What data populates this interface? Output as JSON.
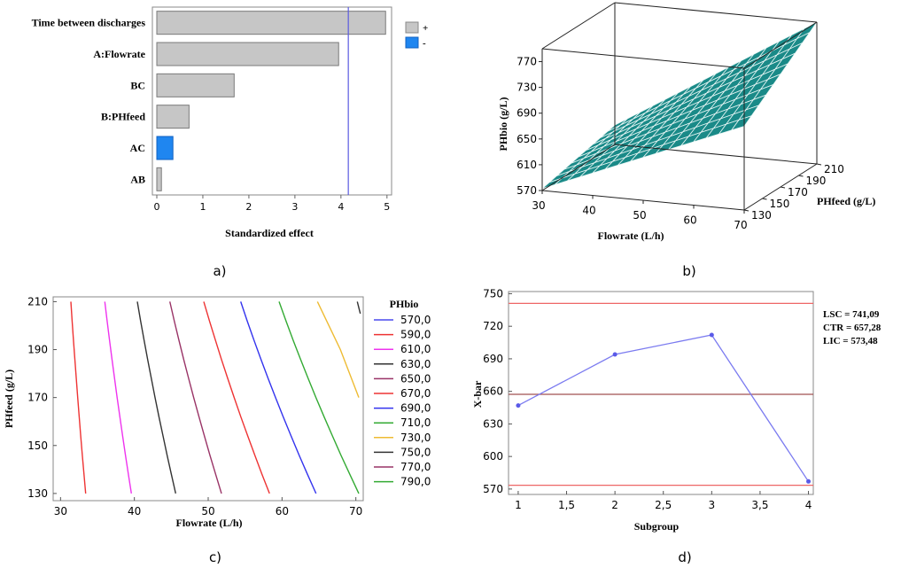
{
  "panel_labels": [
    "a)",
    "b)",
    "c)",
    "d)"
  ],
  "chart_data": [
    {
      "id": "a",
      "type": "bar",
      "orientation": "horizontal",
      "categories": [
        "Time between discharges",
        "A:Flowrate",
        "BC",
        "B:PHfeed",
        "AC",
        "AB"
      ],
      "values": [
        4.97,
        3.95,
        1.68,
        0.7,
        0.35,
        0.1
      ],
      "signs": [
        "+",
        "+",
        "+",
        "+",
        "-",
        "+"
      ],
      "xlabel": "Standardized effect",
      "xlim": [
        0,
        5.1
      ],
      "xticks": [
        0,
        1,
        2,
        3,
        4,
        5
      ],
      "reference_line": 4.16,
      "legend": {
        "entries": [
          "+",
          "-"
        ],
        "placement": "right"
      },
      "colors": {
        "positive": "#c6c6c6",
        "negative": "#1f86f0",
        "reference": "#5a5ae0"
      }
    },
    {
      "id": "b",
      "type": "surface",
      "xlabel": "Flowrate (L/h)",
      "ylabel": "PHfeed (g/L)",
      "zlabel": "PHbio (g/L)",
      "x_ticks": [
        30,
        40,
        50,
        60,
        70
      ],
      "y_ticks": [
        130,
        150,
        170,
        190,
        210
      ],
      "z_ticks": [
        570,
        610,
        650,
        690,
        730,
        770
      ],
      "xlim": [
        30,
        70
      ],
      "ylim": [
        130,
        210
      ],
      "zlim": [
        570,
        790
      ],
      "corner_values": {
        "x30_y130": 573,
        "x70_y130": 700,
        "x30_y210": 600,
        "x70_y210": 790
      },
      "color": "#1a8a88"
    },
    {
      "id": "c",
      "type": "contour",
      "xlabel": "Flowrate (L/h)",
      "ylabel": "PHfeed (g/L)",
      "xlim": [
        29,
        71
      ],
      "ylim": [
        127,
        212
      ],
      "xticks": [
        30,
        40,
        50,
        60,
        70
      ],
      "yticks": [
        130,
        150,
        170,
        190,
        210
      ],
      "legend_title": "PHbio",
      "levels": [
        {
          "label": "570,0",
          "color": "#4a4aee",
          "x_at_210": null,
          "x_at_130": null
        },
        {
          "label": "590,0",
          "color": "#ee3333",
          "x_at_210": 31.4,
          "x_at_130": 33.4
        },
        {
          "label": "610,0",
          "color": "#ee33ee",
          "x_at_210": 36.0,
          "x_at_130": 39.6
        },
        {
          "label": "630,0",
          "color": "#333333",
          "x_at_210": 40.4,
          "x_at_130": 45.6
        },
        {
          "label": "650,0",
          "color": "#993366",
          "x_at_210": 44.8,
          "x_at_130": 51.8
        },
        {
          "label": "670,0",
          "color": "#ee3333",
          "x_at_210": 49.4,
          "x_at_130": 58.3
        },
        {
          "label": "690,0",
          "color": "#3333ee",
          "x_at_210": 54.4,
          "x_at_130": 64.6
        },
        {
          "label": "710,0",
          "color": "#33aa33",
          "x_at_210": 59.6,
          "x_at_130": 70.4
        },
        {
          "label": "730,0",
          "color": "#eebb33",
          "x_at_210": 64.8,
          "x_at_170": 70.4
        },
        {
          "label": "750,0",
          "color": "#333333",
          "x_at_210": 70.2,
          "x_at_205": 70.6
        },
        {
          "label": "770,0",
          "color": "#993366",
          "x_at_210": null,
          "x_at_130": null
        },
        {
          "label": "790,0",
          "color": "#33aa33",
          "x_at_210": null,
          "x_at_130": null
        }
      ]
    },
    {
      "id": "d",
      "type": "line",
      "xlabel": "Subgroup",
      "ylabel": "X-bar",
      "x": [
        1,
        2,
        3,
        4
      ],
      "values": [
        647,
        694,
        712,
        577
      ],
      "xlim": [
        0.9,
        4.05
      ],
      "ylim": [
        565,
        752
      ],
      "xticks": [
        "1",
        "1,5",
        "2",
        "2,5",
        "3",
        "3,5",
        "4"
      ],
      "yticks": [
        570,
        600,
        630,
        660,
        690,
        720,
        750
      ],
      "control_lines": {
        "LSC": 741.09,
        "CTR": 657.28,
        "LIC": 573.48
      },
      "annotations": [
        "LSC = 741,09",
        "CTR = 657,28",
        "LIC = 573,48"
      ],
      "colors": {
        "series": "#7b7bf0",
        "limits": "#ee6666",
        "center": "#a05050"
      }
    }
  ]
}
